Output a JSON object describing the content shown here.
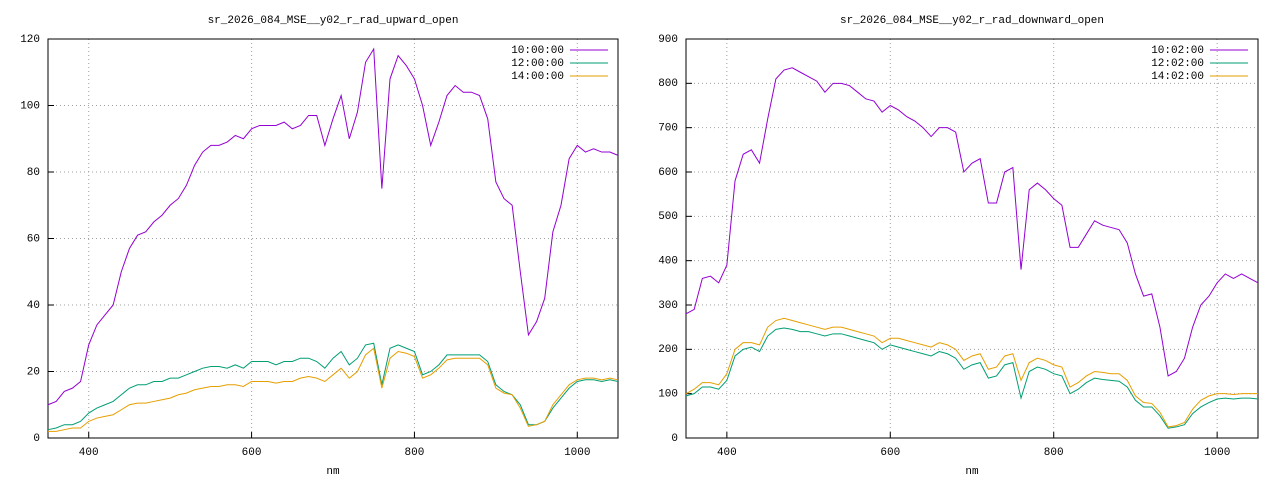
{
  "chart_data": [
    {
      "type": "line",
      "title": "sr_2026_084_MSE__y02_r_rad_upward_open",
      "x_label": "nm",
      "x": [
        350,
        360,
        370,
        380,
        390,
        400,
        410,
        420,
        430,
        440,
        450,
        460,
        470,
        480,
        490,
        500,
        510,
        520,
        530,
        540,
        550,
        560,
        570,
        580,
        590,
        600,
        610,
        620,
        630,
        640,
        650,
        660,
        670,
        680,
        690,
        700,
        710,
        720,
        730,
        740,
        750,
        760,
        770,
        780,
        790,
        800,
        810,
        820,
        830,
        840,
        850,
        860,
        870,
        880,
        890,
        900,
        910,
        920,
        930,
        940,
        950,
        960,
        970,
        980,
        990,
        1000,
        1010,
        1020,
        1030,
        1040,
        1050
      ],
      "xlim": [
        350,
        1050
      ],
      "xticks": [
        400,
        600,
        800,
        1000
      ],
      "ylim": [
        0,
        120
      ],
      "yticks": [
        0,
        20,
        40,
        60,
        80,
        100,
        120
      ],
      "grid": true,
      "legend": "top-right",
      "series": [
        {
          "name": "10:00:00",
          "color": "#9400d3",
          "values": [
            10,
            11,
            14,
            15,
            17,
            28,
            34,
            37,
            40,
            50,
            57,
            61,
            62,
            65,
            67,
            70,
            72,
            76,
            82,
            86,
            88,
            88,
            89,
            91,
            90,
            93,
            94,
            94,
            94,
            95,
            93,
            94,
            97,
            97,
            88,
            96,
            103,
            90,
            98,
            113,
            117,
            75,
            108,
            115,
            112,
            108,
            100,
            88,
            95,
            103,
            106,
            104,
            104,
            103,
            96,
            77,
            72,
            70,
            50,
            31,
            35,
            42,
            62,
            70,
            84,
            88,
            86,
            87,
            86,
            86,
            85
          ]
        },
        {
          "name": "12:00:00",
          "color": "#009e73",
          "values": [
            2.5,
            3,
            4,
            4,
            5,
            7.5,
            9,
            10,
            11,
            13,
            15,
            16,
            16,
            17,
            17,
            18,
            18,
            19,
            20,
            21,
            21.5,
            21.5,
            21,
            22,
            21,
            23,
            23,
            23,
            22,
            23,
            23,
            24,
            24,
            23,
            21,
            24,
            26,
            22,
            24,
            28,
            28.5,
            16,
            27,
            28,
            27,
            26,
            19,
            20,
            22,
            25,
            25,
            25,
            25,
            25,
            23,
            16,
            14,
            13,
            10,
            4,
            4,
            5,
            9,
            12,
            15,
            17,
            17.5,
            17.5,
            17,
            17.5,
            17
          ]
        },
        {
          "name": "14:00:00",
          "color": "#e69f00",
          "values": [
            2,
            2,
            2.5,
            3,
            3,
            5,
            6,
            6.5,
            7,
            8.5,
            10,
            10.5,
            10.5,
            11,
            11.5,
            12,
            13,
            13.5,
            14.5,
            15,
            15.5,
            15.5,
            16,
            16,
            15.5,
            17,
            17,
            17,
            16.5,
            17,
            17,
            18,
            18.5,
            18,
            17,
            19,
            21,
            18,
            20,
            25,
            27,
            15,
            24,
            26,
            25.5,
            24.5,
            18,
            19,
            21,
            23.5,
            24,
            24,
            24,
            24,
            22,
            15,
            13.5,
            13,
            9,
            3.5,
            4,
            5,
            10,
            13,
            16,
            17.5,
            18,
            18,
            17.5,
            18,
            17.5
          ]
        }
      ]
    },
    {
      "type": "line",
      "title": "sr_2026_084_MSE__y02_r_rad_downward_open",
      "x_label": "nm",
      "x": [
        350,
        360,
        370,
        380,
        390,
        400,
        410,
        420,
        430,
        440,
        450,
        460,
        470,
        480,
        490,
        500,
        510,
        520,
        530,
        540,
        550,
        560,
        570,
        580,
        590,
        600,
        610,
        620,
        630,
        640,
        650,
        660,
        670,
        680,
        690,
        700,
        710,
        720,
        730,
        740,
        750,
        760,
        770,
        780,
        790,
        800,
        810,
        820,
        830,
        840,
        850,
        860,
        870,
        880,
        890,
        900,
        910,
        920,
        930,
        940,
        950,
        960,
        970,
        980,
        990,
        1000,
        1010,
        1020,
        1030,
        1040,
        1050
      ],
      "xlim": [
        350,
        1050
      ],
      "xticks": [
        400,
        600,
        800,
        1000
      ],
      "ylim": [
        0,
        900
      ],
      "yticks": [
        0,
        100,
        200,
        300,
        400,
        500,
        600,
        700,
        800,
        900
      ],
      "grid": true,
      "legend": "top-right",
      "series": [
        {
          "name": "10:02:00",
          "color": "#9400d3",
          "values": [
            280,
            290,
            360,
            365,
            350,
            390,
            580,
            640,
            650,
            620,
            720,
            810,
            830,
            835,
            825,
            815,
            805,
            780,
            800,
            800,
            795,
            780,
            765,
            760,
            735,
            750,
            740,
            725,
            715,
            700,
            680,
            700,
            700,
            690,
            600,
            620,
            630,
            530,
            530,
            600,
            610,
            380,
            560,
            575,
            560,
            540,
            525,
            430,
            430,
            460,
            490,
            480,
            475,
            470,
            440,
            370,
            320,
            325,
            250,
            140,
            150,
            180,
            250,
            300,
            320,
            350,
            370,
            360,
            370,
            360,
            350
          ]
        },
        {
          "name": "12:02:00",
          "color": "#009e73",
          "values": [
            95,
            100,
            115,
            115,
            110,
            130,
            185,
            200,
            205,
            195,
            230,
            245,
            248,
            245,
            240,
            240,
            235,
            230,
            235,
            235,
            230,
            225,
            220,
            215,
            200,
            210,
            205,
            200,
            195,
            190,
            185,
            195,
            190,
            180,
            155,
            165,
            170,
            135,
            140,
            165,
            170,
            90,
            150,
            160,
            155,
            145,
            140,
            100,
            110,
            125,
            135,
            132,
            130,
            128,
            115,
            85,
            70,
            70,
            50,
            22,
            25,
            30,
            55,
            70,
            80,
            88,
            90,
            88,
            90,
            90,
            88
          ]
        },
        {
          "name": "14:02:00",
          "color": "#e69f00",
          "values": [
            100,
            110,
            125,
            125,
            120,
            145,
            200,
            215,
            215,
            210,
            250,
            265,
            270,
            265,
            260,
            255,
            250,
            245,
            250,
            250,
            245,
            240,
            235,
            230,
            215,
            225,
            225,
            220,
            215,
            210,
            205,
            215,
            210,
            200,
            175,
            185,
            190,
            155,
            160,
            185,
            190,
            130,
            170,
            180,
            175,
            165,
            160,
            115,
            125,
            140,
            150,
            148,
            145,
            145,
            130,
            95,
            80,
            78,
            58,
            25,
            28,
            35,
            65,
            85,
            95,
            100,
            100,
            98,
            100,
            100,
            100
          ]
        }
      ]
    }
  ]
}
